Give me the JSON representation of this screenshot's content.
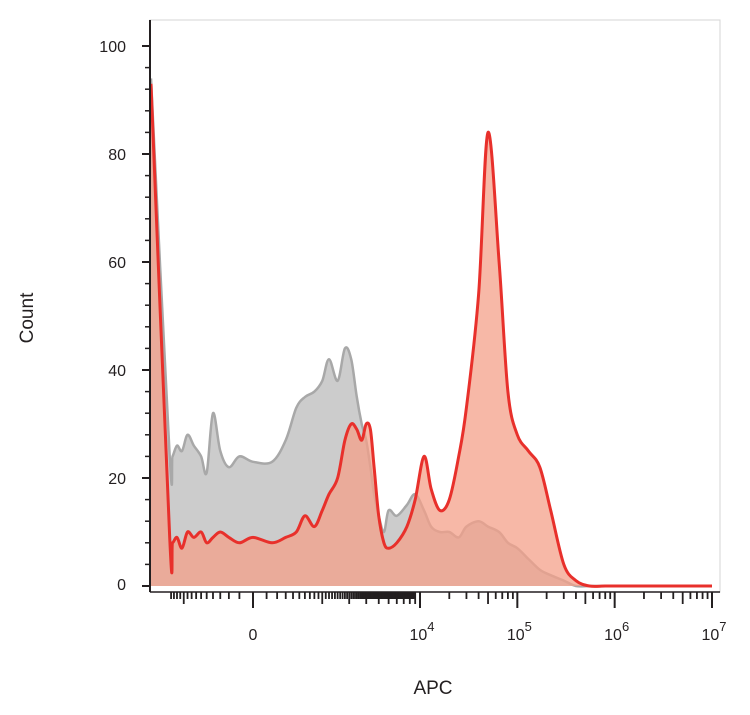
{
  "chart_data": {
    "type": "area",
    "xlabel": "APC",
    "ylabel": "Count",
    "ylim": [
      0,
      100
    ],
    "y_ticks": [
      "0",
      "20",
      "40",
      "60",
      "80",
      "100"
    ],
    "x_scale": "biexponential",
    "x_tick_labels": [
      {
        "base": "0",
        "exp": ""
      },
      {
        "base": "10",
        "exp": "4"
      },
      {
        "base": "10",
        "exp": "5"
      },
      {
        "base": "10",
        "exp": "6"
      },
      {
        "base": "10",
        "exp": "7"
      }
    ],
    "series": [
      {
        "color": "#a8a8a8",
        "fill": "#c9c9c9",
        "x": [
          "-1.5e3",
          "-1.45e3",
          "-1.35e3",
          "-1.2e3",
          "-1.05e3",
          "-900",
          "-750",
          "-600",
          "-500",
          "-400",
          "-300",
          "-200",
          "-100",
          "0",
          "150",
          "300",
          "450",
          "600",
          "800",
          "1000",
          "1200",
          "1500",
          "1800",
          "2100",
          "2400",
          "2700",
          "3000",
          "3300",
          "3600",
          "4000",
          "4500",
          "5000",
          "6000",
          "7500",
          "9000",
          "1.1e4",
          "1.3e4",
          "1.6e4",
          "2e4",
          "2.5e4",
          "3e4",
          "4e4",
          "5e4",
          "6.5e4",
          "8e4",
          "1e5",
          "1.3e5",
          "1.7e5",
          "2.2e5",
          "3e5",
          "4e5",
          "5.5e5",
          "8e5",
          "1.2e6",
          "2e6",
          "1e7"
        ],
        "values": [
          94,
          24,
          24,
          26,
          25,
          28,
          26,
          24,
          21,
          32,
          25,
          22,
          24,
          23,
          23,
          27,
          33,
          35,
          36,
          38,
          42,
          38,
          44,
          42,
          35,
          30,
          27,
          22,
          17,
          13,
          10,
          14,
          13,
          15,
          17,
          14,
          11,
          10,
          10,
          9,
          11,
          12,
          11,
          10,
          8,
          7,
          5,
          3,
          2,
          1,
          0,
          0,
          0,
          0,
          0,
          0
        ]
      },
      {
        "color": "#e8302b",
        "fill": "#f4a089",
        "x": [
          "-1.5e3",
          "-1.45e3",
          "-1.35e3",
          "-1.2e3",
          "-1.05e3",
          "-900",
          "-750",
          "-600",
          "-500",
          "-400",
          "-300",
          "-200",
          "-100",
          "0",
          "150",
          "300",
          "450",
          "600",
          "800",
          "1000",
          "1200",
          "1500",
          "1800",
          "2100",
          "2400",
          "2700",
          "3000",
          "3300",
          "3600",
          "4000",
          "4500",
          "5000",
          "6000",
          "7500",
          "9000",
          "1.1e4",
          "1.3e4",
          "1.6e4",
          "2e4",
          "2.5e4",
          "3e4",
          "4e4",
          "5e4",
          "6.5e4",
          "8e4",
          "1e5",
          "1.3e5",
          "1.7e5",
          "2.2e5",
          "3e5",
          "4e5",
          "5.5e5",
          "8e5",
          "1.2e6",
          "2e6",
          "1e7"
        ],
        "values": [
          93,
          9,
          8,
          9,
          7,
          10,
          9,
          10,
          8,
          9,
          10,
          9,
          8,
          9,
          8,
          9,
          10,
          13,
          11,
          14,
          17,
          20,
          27,
          30,
          29,
          27,
          30,
          29,
          22,
          13,
          8,
          7,
          8,
          11,
          16,
          24,
          18,
          14,
          16,
          24,
          33,
          54,
          84,
          60,
          36,
          28,
          25,
          22,
          14,
          4,
          1,
          0,
          0,
          0,
          0,
          0
        ]
      }
    ]
  }
}
